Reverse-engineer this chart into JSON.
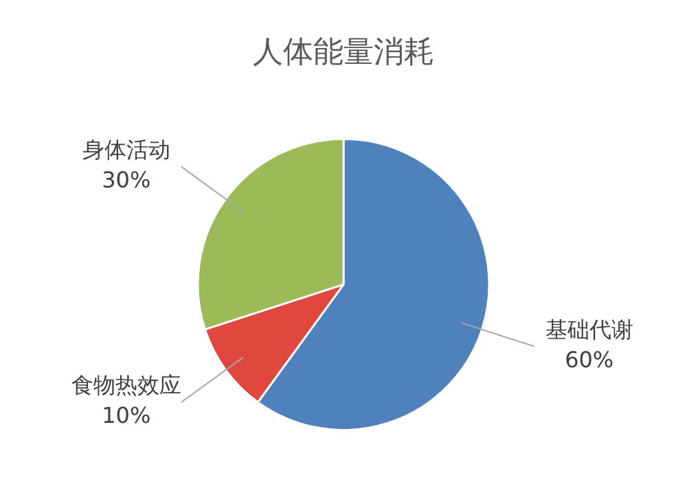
{
  "chart_data": {
    "type": "pie",
    "title": "人体能量消耗",
    "categories": [
      "基础代谢",
      "食物热效应",
      "身体活动"
    ],
    "values": [
      60,
      10,
      30
    ],
    "colors": [
      "#4f81bd",
      "#e0483f",
      "#9bbb59"
    ],
    "value_labels": [
      "60%",
      "10%",
      "30%"
    ],
    "legend": false
  }
}
